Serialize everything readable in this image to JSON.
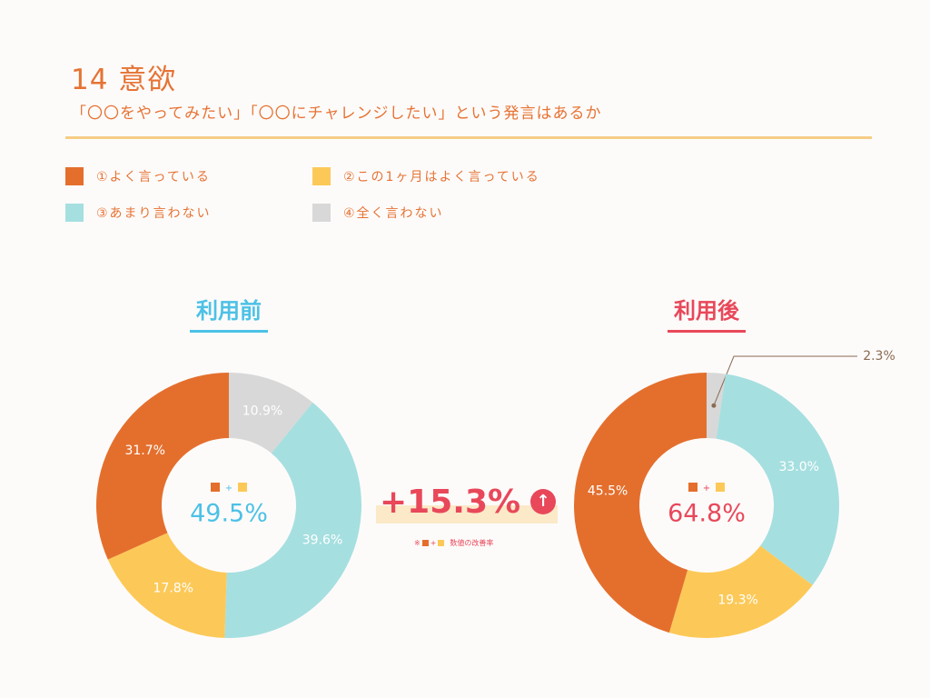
{
  "header": {
    "title": "14 意欲",
    "subtitle": "「〇〇をやってみたい」「〇〇にチャレンジしたい」という発言はあるか"
  },
  "legend": [
    {
      "label": "①よく言っている",
      "color": "#e46f2d"
    },
    {
      "label": "②この1ヶ月はよく言っている",
      "color": "#fcc958"
    },
    {
      "label": "③あまり言わない",
      "color": "#a6dfe0"
    },
    {
      "label": "④全く言わない",
      "color": "#d8d8d8"
    }
  ],
  "colors": {
    "before_accent": "#4cc1e6",
    "after_accent": "#e8485a"
  },
  "comparison": {
    "diff_label": "+15.3%",
    "arrow_icon": "up-arrow-icon",
    "note_prefix": "※",
    "note_plus": "+",
    "note_text": "数値の改善率"
  },
  "chart_data": [
    {
      "type": "pie",
      "title": "利用前",
      "categories": [
        "①よく言っている",
        "②この1ヶ月はよく言っている",
        "③あまり言わない",
        "④全く言わない"
      ],
      "values": [
        31.7,
        17.8,
        39.6,
        10.9
      ],
      "value_labels": [
        "31.7%",
        "17.8%",
        "39.6%",
        "10.9%"
      ],
      "center_label": "49.5%",
      "center_plus": "+"
    },
    {
      "type": "pie",
      "title": "利用後",
      "categories": [
        "①よく言っている",
        "②この1ヶ月はよく言っている",
        "③あまり言わない",
        "④全く言わない"
      ],
      "values": [
        45.5,
        19.3,
        33.0,
        2.3
      ],
      "value_labels": [
        "45.5%",
        "19.3%",
        "33.0%",
        "2.3%"
      ],
      "center_label": "64.8%",
      "center_plus": "+"
    }
  ]
}
